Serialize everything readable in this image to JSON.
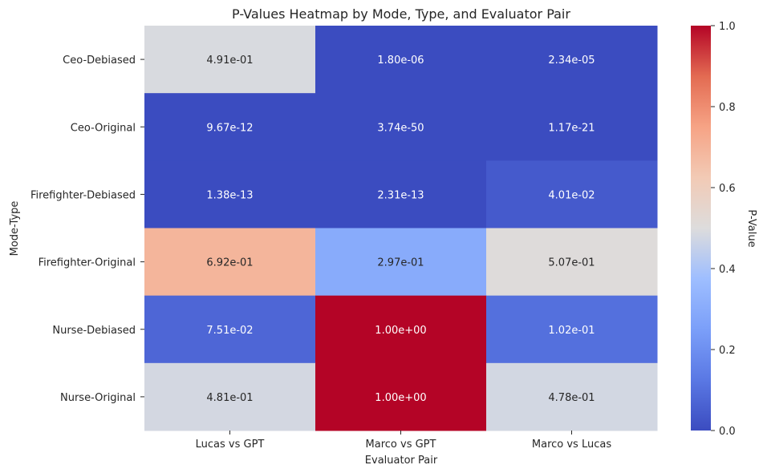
{
  "chart_data": {
    "type": "heatmap",
    "title": "P-Values Heatmap by Mode, Type, and Evaluator Pair",
    "xlabel": "Evaluator Pair",
    "ylabel": "Mode-Type",
    "x_categories": [
      "Lucas vs GPT",
      "Marco vs GPT",
      "Marco vs Lucas"
    ],
    "y_categories": [
      "Ceo-Debiased",
      "Ceo-Original",
      "Firefighter-Debiased",
      "Firefighter-Original",
      "Nurse-Debiased",
      "Nurse-Original"
    ],
    "values": [
      [
        0.491,
        1.8e-06,
        2.34e-05
      ],
      [
        9.67e-12,
        3.74e-50,
        1.17e-21
      ],
      [
        1.38e-13,
        2.31e-13,
        0.0401
      ],
      [
        0.692,
        0.297,
        0.507
      ],
      [
        0.0751,
        1.0,
        0.102
      ],
      [
        0.481,
        1.0,
        0.478
      ]
    ],
    "cell_labels": [
      [
        "4.91e-01",
        "1.80e-06",
        "2.34e-05"
      ],
      [
        "9.67e-12",
        "3.74e-50",
        "1.17e-21"
      ],
      [
        "1.38e-13",
        "2.31e-13",
        "4.01e-02"
      ],
      [
        "6.92e-01",
        "2.97e-01",
        "5.07e-01"
      ],
      [
        "7.51e-02",
        "1.00e+00",
        "1.02e-01"
      ],
      [
        "4.81e-01",
        "1.00e+00",
        "4.78e-01"
      ]
    ],
    "colormap": "coolwarm",
    "color_range": [
      0.0,
      1.0
    ],
    "colorbar": {
      "label": "P-Value",
      "ticks": [
        0.0,
        0.2,
        0.4,
        0.6,
        0.8,
        1.0
      ],
      "tick_labels": [
        "0.0",
        "0.2",
        "0.4",
        "0.6",
        "0.8",
        "1.0"
      ]
    }
  }
}
